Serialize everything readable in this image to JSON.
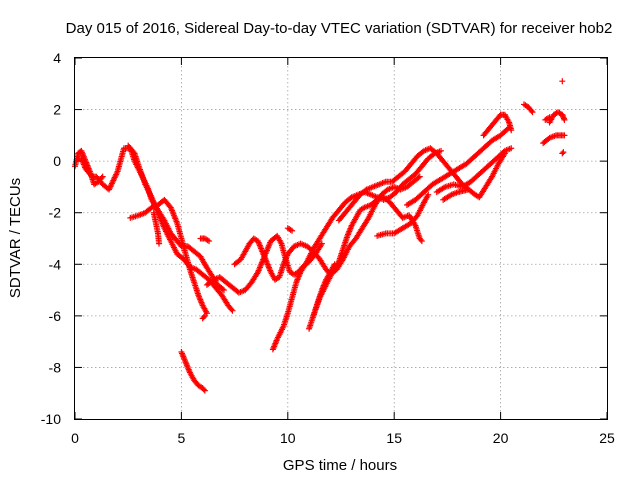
{
  "chart_data": {
    "type": "scatter",
    "title": "Day 015 of 2016, Sidereal Day-to-day VTEC variation (SDTVAR) for receiver hob2",
    "xlabel": "GPS time / hours",
    "ylabel": "SDTVAR / TECUs",
    "xlim": [
      0,
      25
    ],
    "ylim": [
      -10,
      4
    ],
    "xticks": [
      0,
      5,
      10,
      15,
      20,
      25
    ],
    "yticks": [
      -10,
      -8,
      -6,
      -4,
      -2,
      0,
      2,
      4
    ],
    "grid": true,
    "marker": "+",
    "color": "#ff0000",
    "segments": [
      {
        "points": [
          [
            0.0,
            -0.2
          ],
          [
            0.15,
            0.3
          ],
          [
            0.3,
            0.4
          ],
          [
            0.5,
            0.0
          ],
          [
            0.7,
            -0.4
          ],
          [
            0.9,
            -0.9
          ],
          [
            1.1,
            -0.8
          ],
          [
            1.3,
            -0.6
          ]
        ]
      },
      {
        "points": [
          [
            0.1,
            0.1
          ],
          [
            0.3,
            0.1
          ],
          [
            0.5,
            -0.3
          ],
          [
            0.8,
            -0.6
          ],
          [
            1.0,
            -0.6
          ],
          [
            1.3,
            -0.9
          ],
          [
            1.6,
            -1.1
          ],
          [
            2.0,
            -0.4
          ],
          [
            2.3,
            0.5
          ],
          [
            2.6,
            0.5
          ],
          [
            2.8,
            0.0
          ],
          [
            3.1,
            -0.5
          ],
          [
            3.4,
            -1.0
          ],
          [
            3.6,
            -1.5
          ],
          [
            3.9,
            -1.9
          ],
          [
            4.2,
            -2.3
          ],
          [
            4.5,
            -2.8
          ],
          [
            4.8,
            -3.1
          ],
          [
            5.0,
            -3.3
          ],
          [
            5.3,
            -3.3
          ],
          [
            5.6,
            -3.5
          ],
          [
            5.9,
            -3.7
          ],
          [
            6.1,
            -4.0
          ],
          [
            6.4,
            -4.4
          ],
          [
            6.7,
            -4.8
          ],
          [
            7.0,
            -5.0
          ]
        ]
      },
      {
        "points": [
          [
            2.5,
            0.6
          ],
          [
            2.8,
            0.3
          ],
          [
            3.0,
            -0.2
          ],
          [
            3.3,
            -0.9
          ],
          [
            3.6,
            -1.4
          ],
          [
            3.9,
            -2.0
          ],
          [
            4.2,
            -2.6
          ],
          [
            4.5,
            -3.1
          ],
          [
            4.8,
            -3.6
          ],
          [
            5.1,
            -3.8
          ],
          [
            5.4,
            -4.1
          ],
          [
            5.7,
            -4.2
          ],
          [
            6.0,
            -4.4
          ],
          [
            6.3,
            -4.6
          ],
          [
            6.6,
            -4.9
          ],
          [
            6.9,
            -5.2
          ],
          [
            7.2,
            -5.6
          ],
          [
            7.4,
            -5.8
          ]
        ]
      },
      {
        "points": [
          [
            2.6,
            -2.2
          ],
          [
            3.0,
            -2.1
          ],
          [
            3.3,
            -2.0
          ],
          [
            3.6,
            -1.8
          ],
          [
            3.9,
            -1.7
          ],
          [
            4.2,
            -1.5
          ],
          [
            4.5,
            -1.8
          ],
          [
            4.8,
            -2.4
          ],
          [
            5.0,
            -3.0
          ],
          [
            5.2,
            -3.6
          ],
          [
            5.4,
            -4.2
          ],
          [
            5.6,
            -4.7
          ],
          [
            5.8,
            -5.2
          ],
          [
            6.0,
            -5.6
          ],
          [
            6.2,
            -5.9
          ]
        ]
      },
      {
        "points": [
          [
            3.7,
            -2.0
          ],
          [
            3.8,
            -2.4
          ],
          [
            3.9,
            -2.8
          ],
          [
            3.95,
            -3.2
          ]
        ]
      },
      {
        "points": [
          [
            5.0,
            -7.4
          ],
          [
            5.2,
            -7.8
          ],
          [
            5.4,
            -8.2
          ],
          [
            5.6,
            -8.5
          ],
          [
            5.8,
            -8.7
          ],
          [
            6.0,
            -8.8
          ],
          [
            6.1,
            -8.9
          ]
        ]
      },
      {
        "points": [
          [
            6.0,
            -6.1
          ],
          [
            6.1,
            -6.0
          ]
        ]
      },
      {
        "points": [
          [
            5.9,
            -3.0
          ],
          [
            6.1,
            -3.0
          ],
          [
            6.3,
            -3.1
          ]
        ]
      },
      {
        "points": [
          [
            6.2,
            -4.8
          ],
          [
            6.5,
            -4.6
          ],
          [
            6.8,
            -4.5
          ],
          [
            7.1,
            -4.7
          ],
          [
            7.4,
            -4.9
          ],
          [
            7.7,
            -5.1
          ],
          [
            8.0,
            -5.0
          ],
          [
            8.3,
            -4.7
          ],
          [
            8.6,
            -4.3
          ],
          [
            8.9,
            -3.7
          ],
          [
            9.2,
            -3.1
          ],
          [
            9.5,
            -2.9
          ],
          [
            9.7,
            -3.2
          ],
          [
            9.9,
            -3.8
          ],
          [
            10.1,
            -4.3
          ],
          [
            10.3,
            -4.4
          ],
          [
            10.5,
            -4.3
          ],
          [
            10.7,
            -4.1
          ],
          [
            11.0,
            -3.9
          ],
          [
            11.3,
            -3.6
          ],
          [
            11.6,
            -3.2
          ]
        ]
      },
      {
        "points": [
          [
            7.5,
            -4.0
          ],
          [
            7.8,
            -3.8
          ],
          [
            8.0,
            -3.5
          ],
          [
            8.2,
            -3.2
          ],
          [
            8.4,
            -3.0
          ],
          [
            8.6,
            -3.1
          ],
          [
            8.8,
            -3.5
          ],
          [
            9.0,
            -3.9
          ],
          [
            9.2,
            -4.3
          ],
          [
            9.4,
            -4.6
          ],
          [
            9.6,
            -4.5
          ],
          [
            9.8,
            -4.0
          ],
          [
            10.0,
            -3.6
          ],
          [
            10.3,
            -3.3
          ],
          [
            10.6,
            -3.2
          ],
          [
            10.9,
            -3.3
          ],
          [
            11.2,
            -3.5
          ],
          [
            11.5,
            -3.8
          ],
          [
            11.8,
            -4.2
          ],
          [
            12.0,
            -4.4
          ],
          [
            12.3,
            -4.2
          ],
          [
            12.6,
            -3.8
          ],
          [
            12.9,
            -3.3
          ],
          [
            13.2,
            -3.0
          ],
          [
            13.5,
            -2.6
          ],
          [
            13.8,
            -2.2
          ],
          [
            14.1,
            -1.7
          ],
          [
            14.4,
            -1.3
          ],
          [
            14.7,
            -1.1
          ],
          [
            15.0,
            -1.0
          ],
          [
            15.3,
            -1.1
          ],
          [
            15.6,
            -1.0
          ],
          [
            15.9,
            -0.8
          ],
          [
            16.2,
            -0.6
          ]
        ]
      },
      {
        "points": [
          [
            9.3,
            -7.3
          ],
          [
            9.5,
            -6.9
          ],
          [
            9.8,
            -6.4
          ],
          [
            10.0,
            -5.9
          ],
          [
            10.2,
            -5.3
          ],
          [
            10.4,
            -4.7
          ],
          [
            10.6,
            -4.3
          ],
          [
            10.9,
            -3.9
          ],
          [
            11.2,
            -3.4
          ],
          [
            11.5,
            -3.0
          ],
          [
            11.8,
            -2.6
          ],
          [
            12.1,
            -2.2
          ],
          [
            12.4,
            -1.9
          ],
          [
            12.7,
            -1.6
          ],
          [
            13.0,
            -1.4
          ],
          [
            13.3,
            -1.3
          ],
          [
            13.6,
            -1.2
          ],
          [
            13.9,
            -1.3
          ],
          [
            14.2,
            -1.4
          ],
          [
            14.5,
            -1.5
          ],
          [
            14.8,
            -1.4
          ],
          [
            15.1,
            -1.2
          ],
          [
            15.4,
            -0.9
          ],
          [
            15.7,
            -0.7
          ],
          [
            16.0,
            -0.5
          ],
          [
            16.3,
            -0.2
          ],
          [
            16.6,
            0.1
          ],
          [
            16.9,
            0.3
          ],
          [
            17.2,
            0.4
          ]
        ]
      },
      {
        "points": [
          [
            10.0,
            -2.6
          ],
          [
            10.2,
            -2.7
          ]
        ]
      },
      {
        "points": [
          [
            11.0,
            -6.5
          ],
          [
            11.2,
            -6.0
          ],
          [
            11.4,
            -5.5
          ],
          [
            11.6,
            -5.0
          ],
          [
            11.8,
            -4.6
          ],
          [
            12.0,
            -4.3
          ],
          [
            12.2,
            -4.0
          ]
        ]
      },
      {
        "points": [
          [
            11.2,
            -6.0
          ],
          [
            11.5,
            -5.3
          ],
          [
            11.8,
            -4.8
          ],
          [
            12.1,
            -4.3
          ],
          [
            12.4,
            -3.9
          ],
          [
            12.6,
            -3.4
          ],
          [
            12.8,
            -2.9
          ],
          [
            13.0,
            -2.5
          ],
          [
            13.2,
            -2.2
          ],
          [
            13.4,
            -1.9
          ],
          [
            13.6,
            -1.8
          ],
          [
            13.9,
            -1.7
          ],
          [
            14.2,
            -1.5
          ],
          [
            14.5,
            -1.4
          ],
          [
            14.8,
            -1.6
          ],
          [
            15.1,
            -1.9
          ],
          [
            15.4,
            -2.2
          ],
          [
            15.7,
            -2.1
          ],
          [
            16.0,
            -2.5
          ],
          [
            16.2,
            -3.0
          ],
          [
            16.3,
            -3.1
          ]
        ]
      },
      {
        "points": [
          [
            12.4,
            -2.3
          ],
          [
            12.8,
            -1.9
          ],
          [
            13.1,
            -1.6
          ],
          [
            13.4,
            -1.3
          ],
          [
            13.7,
            -1.1
          ],
          [
            14.0,
            -1.0
          ],
          [
            14.3,
            -0.9
          ],
          [
            14.6,
            -0.8
          ],
          [
            14.9,
            -0.8
          ],
          [
            15.2,
            -0.6
          ],
          [
            15.5,
            -0.4
          ],
          [
            15.8,
            -0.1
          ],
          [
            16.1,
            0.2
          ],
          [
            16.4,
            0.4
          ],
          [
            16.7,
            0.5
          ],
          [
            17.0,
            0.3
          ],
          [
            17.3,
            0.0
          ],
          [
            17.6,
            -0.3
          ],
          [
            17.9,
            -0.6
          ],
          [
            18.2,
            -0.9
          ],
          [
            18.5,
            -1.1
          ]
        ]
      },
      {
        "points": [
          [
            14.2,
            -2.9
          ],
          [
            14.6,
            -2.8
          ],
          [
            15.0,
            -2.8
          ],
          [
            15.4,
            -2.6
          ],
          [
            15.8,
            -2.4
          ],
          [
            16.1,
            -2.1
          ],
          [
            16.4,
            -1.6
          ],
          [
            16.6,
            -1.3
          ]
        ]
      },
      {
        "points": [
          [
            15.6,
            -1.7
          ],
          [
            16.0,
            -1.5
          ],
          [
            16.4,
            -1.2
          ],
          [
            16.8,
            -0.9
          ],
          [
            17.2,
            -0.7
          ],
          [
            17.6,
            -0.5
          ],
          [
            18.0,
            -0.3
          ],
          [
            18.4,
            -0.1
          ],
          [
            18.8,
            0.2
          ],
          [
            19.2,
            0.5
          ],
          [
            19.6,
            0.8
          ],
          [
            20.0,
            1.0
          ],
          [
            20.4,
            1.3
          ]
        ]
      },
      {
        "points": [
          [
            17.0,
            -1.2
          ],
          [
            17.4,
            -1.0
          ],
          [
            17.8,
            -0.9
          ],
          [
            18.2,
            -1.0
          ],
          [
            18.6,
            -0.8
          ],
          [
            19.0,
            -0.5
          ],
          [
            19.4,
            -0.2
          ],
          [
            19.8,
            0.1
          ],
          [
            20.2,
            0.4
          ],
          [
            20.5,
            0.5
          ]
        ]
      },
      {
        "points": [
          [
            17.3,
            -1.5
          ],
          [
            17.7,
            -1.3
          ],
          [
            18.0,
            -1.2
          ],
          [
            18.5,
            -1.1
          ],
          [
            18.8,
            -1.3
          ],
          [
            19.0,
            -1.4
          ],
          [
            19.3,
            -1.0
          ],
          [
            19.6,
            -0.6
          ],
          [
            19.9,
            -0.1
          ],
          [
            20.2,
            0.3
          ]
        ]
      },
      {
        "points": [
          [
            19.2,
            1.0
          ],
          [
            19.5,
            1.3
          ],
          [
            19.8,
            1.6
          ],
          [
            20.0,
            1.8
          ],
          [
            20.2,
            1.8
          ],
          [
            20.4,
            1.5
          ],
          [
            20.5,
            1.2
          ]
        ]
      },
      {
        "points": [
          [
            21.1,
            2.2
          ],
          [
            21.3,
            2.1
          ],
          [
            21.5,
            1.9
          ]
        ]
      },
      {
        "points": [
          [
            22.1,
            1.6
          ],
          [
            22.3,
            1.7
          ]
        ]
      },
      {
        "points": [
          [
            22.3,
            1.5
          ],
          [
            22.5,
            1.8
          ],
          [
            22.7,
            1.9
          ],
          [
            22.9,
            1.8
          ],
          [
            23.0,
            1.6
          ]
        ]
      },
      {
        "points": [
          [
            22.0,
            0.7
          ],
          [
            22.3,
            0.9
          ],
          [
            22.6,
            1.0
          ],
          [
            22.8,
            1.0
          ],
          [
            23.0,
            1.0
          ]
        ]
      },
      {
        "points": [
          [
            22.9,
            0.3
          ],
          [
            22.95,
            0.35
          ]
        ]
      },
      {
        "points": [
          [
            22.9,
            3.1
          ]
        ]
      }
    ]
  }
}
